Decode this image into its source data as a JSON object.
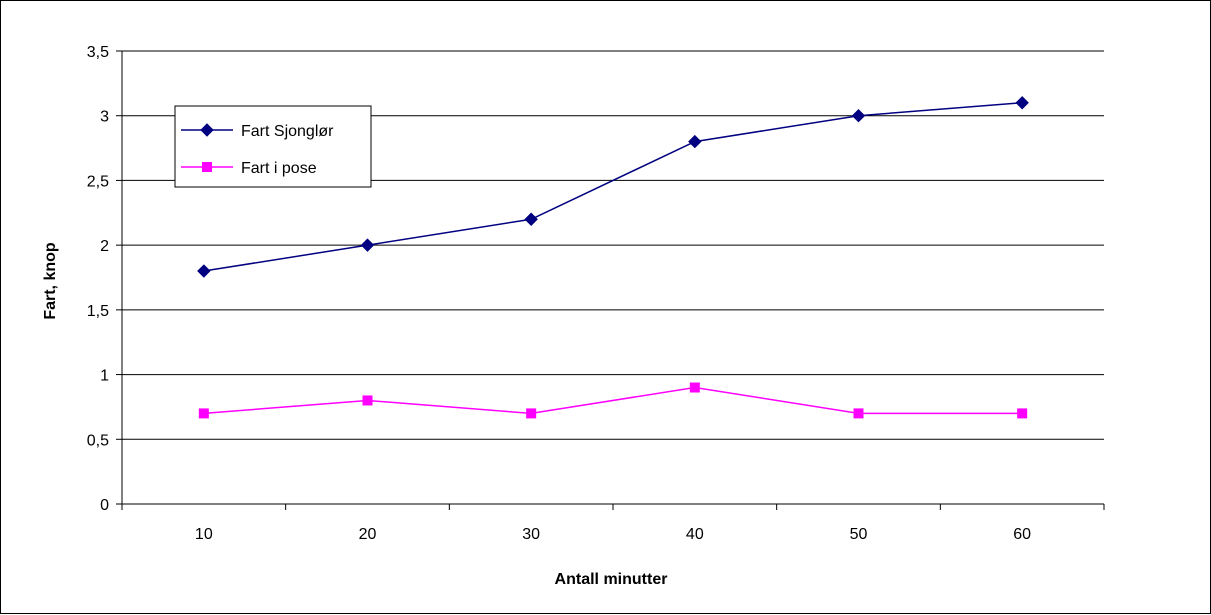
{
  "chart_data": {
    "type": "line",
    "title": "",
    "xlabel": "Antall minutter",
    "ylabel": "Fart, knop",
    "categories": [
      "10",
      "20",
      "30",
      "40",
      "50",
      "60"
    ],
    "y_ticks": [
      "0",
      "0,5",
      "1",
      "1,5",
      "2",
      "2,5",
      "3",
      "3,5"
    ],
    "ylim": [
      0,
      3.5
    ],
    "grid": "horizontal",
    "legend_position": "top-left",
    "series": [
      {
        "name": "Fart Sjonglør",
        "values": [
          1.8,
          2.0,
          2.2,
          2.8,
          3.0,
          3.1
        ],
        "color": "#000080",
        "marker": "diamond"
      },
      {
        "name": "Fart i pose",
        "values": [
          0.7,
          0.8,
          0.7,
          0.9,
          0.7,
          0.7
        ],
        "color": "#FF00FF",
        "marker": "square"
      }
    ]
  }
}
